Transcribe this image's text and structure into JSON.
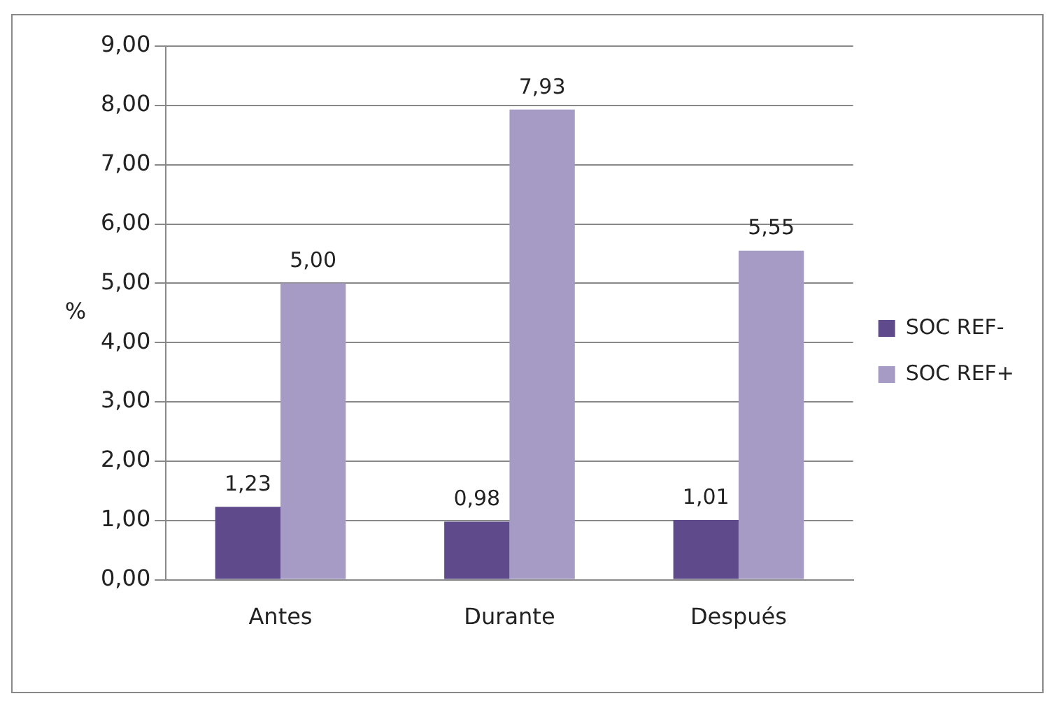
{
  "chart_data": {
    "type": "bar",
    "ylabel": "%",
    "categories": [
      "Antes",
      "Durante",
      "Después"
    ],
    "series": [
      {
        "name": "SOC REF-",
        "color": "#5f4b8b",
        "values": [
          1.23,
          0.98,
          1.01
        ],
        "value_labels": [
          "1,23",
          "0,98",
          "1,01"
        ]
      },
      {
        "name": "SOC REF+",
        "color": "#a59bc4",
        "values": [
          5.0,
          7.93,
          5.55
        ],
        "value_labels": [
          "5,00",
          "7,93",
          "5,55"
        ]
      }
    ],
    "ylim": [
      0,
      9
    ],
    "yticks": [
      {
        "value": 0,
        "label": "0,00"
      },
      {
        "value": 1,
        "label": "1,00"
      },
      {
        "value": 2,
        "label": "2,00"
      },
      {
        "value": 3,
        "label": "3,00"
      },
      {
        "value": 4,
        "label": "4,00"
      },
      {
        "value": 5,
        "label": "5,00"
      },
      {
        "value": 6,
        "label": "6,00"
      },
      {
        "value": 7,
        "label": "7,00"
      },
      {
        "value": 8,
        "label": "8,00"
      },
      {
        "value": 9,
        "label": "9,00"
      }
    ],
    "grid": "y",
    "legend": "right"
  }
}
